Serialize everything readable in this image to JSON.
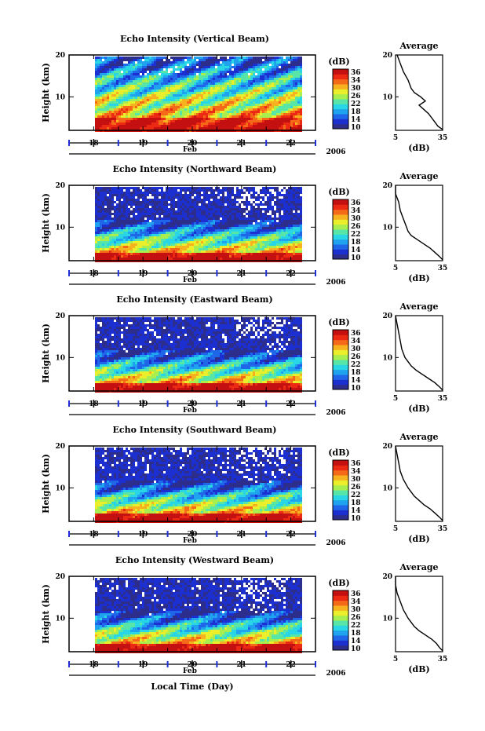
{
  "xlabel": "Local Time (Day)",
  "month_label": "Feb",
  "year_label": "2006",
  "colorbar": {
    "unit_label": "(dB)",
    "ticks": [
      "36",
      "34",
      "30",
      "26",
      "22",
      "18",
      "14",
      "10"
    ],
    "colors": [
      "#2d2d8c",
      "#1c2fd0",
      "#1f66e8",
      "#1fa3ee",
      "#29d6e6",
      "#57e6a8",
      "#a8ee4e",
      "#ebee2a",
      "#f7b21f",
      "#f56a18",
      "#ec2a14",
      "#c41010"
    ]
  },
  "chart_data": [
    {
      "type": "heatmap",
      "title": "Echo Intensity (Vertical Beam)",
      "ylabel": "Height (km)",
      "x_ticks": [
        "18",
        "19",
        "20",
        "21",
        "22"
      ],
      "y_ticks": [
        "20",
        "10"
      ],
      "xlim": [
        17.5,
        22.5
      ],
      "ylim": [
        2,
        20
      ],
      "clim_db": [
        10,
        36
      ],
      "profile": {
        "title": "Average",
        "xlabel": "(dB)",
        "x_ticks": [
          "5",
          "35"
        ],
        "y_ticks": [
          "20",
          "10"
        ],
        "xlim": [
          5,
          35
        ],
        "ylim": [
          2,
          20
        ],
        "height_km": [
          20,
          18,
          16,
          14,
          12,
          11,
          10,
          9,
          8,
          7,
          6,
          5,
          4,
          3,
          2.2
        ],
        "db": [
          6,
          8,
          10,
          13,
          15,
          17,
          21,
          24,
          20,
          23,
          26,
          28,
          30,
          32,
          35
        ]
      }
    },
    {
      "type": "heatmap",
      "title": "Echo Intensity (Northward Beam)",
      "ylabel": "Height (km)",
      "x_ticks": [
        "18",
        "19",
        "20",
        "21",
        "22"
      ],
      "y_ticks": [
        "20",
        "10"
      ],
      "xlim": [
        17.5,
        22.5
      ],
      "ylim": [
        2,
        20
      ],
      "clim_db": [
        10,
        36
      ],
      "profile": {
        "title": "Average",
        "xlabel": "(dB)",
        "x_ticks": [
          "5",
          "35"
        ],
        "y_ticks": [
          "20",
          "10"
        ],
        "xlim": [
          5,
          35
        ],
        "ylim": [
          2,
          20
        ],
        "height_km": [
          20,
          18,
          16,
          14,
          12,
          10,
          9,
          8,
          7,
          6,
          5,
          4,
          3,
          2.2
        ],
        "db": [
          5,
          5,
          7,
          8,
          10,
          12,
          13,
          15,
          19,
          23,
          27,
          30,
          33,
          35
        ]
      }
    },
    {
      "type": "heatmap",
      "title": "Echo Intensity (Eastward Beam)",
      "ylabel": "Height (km)",
      "x_ticks": [
        "18",
        "19",
        "20",
        "21",
        "22"
      ],
      "y_ticks": [
        "20",
        "10"
      ],
      "xlim": [
        17.5,
        22.5
      ],
      "ylim": [
        2,
        20
      ],
      "clim_db": [
        10,
        36
      ],
      "profile": {
        "title": "Average",
        "xlabel": "(dB)",
        "x_ticks": [
          "5",
          "35"
        ],
        "y_ticks": [
          "20",
          "10"
        ],
        "xlim": [
          5,
          35
        ],
        "ylim": [
          2,
          20
        ],
        "height_km": [
          20,
          18,
          16,
          14,
          12,
          10,
          9,
          8,
          7,
          6,
          5,
          4,
          3,
          2.2
        ],
        "db": [
          5,
          6,
          7,
          8,
          9,
          11,
          13,
          15,
          18,
          22,
          26,
          30,
          33,
          35
        ]
      }
    },
    {
      "type": "heatmap",
      "title": "Echo Intensity (Southward Beam)",
      "ylabel": "Height (km)",
      "x_ticks": [
        "18",
        "19",
        "20",
        "21",
        "22"
      ],
      "y_ticks": [
        "20",
        "10"
      ],
      "xlim": [
        17.5,
        22.5
      ],
      "ylim": [
        2,
        20
      ],
      "clim_db": [
        10,
        36
      ],
      "profile": {
        "title": "Average",
        "xlabel": "(dB)",
        "x_ticks": [
          "5",
          "35"
        ],
        "y_ticks": [
          "20",
          "10"
        ],
        "xlim": [
          5,
          35
        ],
        "ylim": [
          2,
          20
        ],
        "height_km": [
          20,
          18,
          16,
          14,
          12,
          10,
          9,
          8,
          7,
          6,
          5,
          4,
          3,
          2.2
        ],
        "db": [
          5,
          6,
          7,
          8,
          10,
          13,
          15,
          17,
          20,
          23,
          27,
          30,
          33,
          35
        ]
      }
    },
    {
      "type": "heatmap",
      "title": "Echo Intensity (Westward Beam)",
      "ylabel": "Height (km)",
      "x_ticks": [
        "18",
        "19",
        "20",
        "21",
        "22"
      ],
      "y_ticks": [
        "20",
        "10"
      ],
      "xlim": [
        17.5,
        22.5
      ],
      "ylim": [
        2,
        20
      ],
      "clim_db": [
        10,
        36
      ],
      "profile": {
        "title": "Average",
        "xlabel": "(dB)",
        "x_ticks": [
          "5",
          "35"
        ],
        "y_ticks": [
          "20",
          "10"
        ],
        "xlim": [
          5,
          35
        ],
        "ylim": [
          2,
          20
        ],
        "height_km": [
          20,
          18,
          16,
          14,
          12,
          10,
          9,
          8,
          7,
          6,
          5,
          4,
          3,
          2.2
        ],
        "db": [
          5,
          5,
          6,
          8,
          10,
          13,
          15,
          17,
          20,
          24,
          28,
          31,
          33,
          35
        ]
      }
    }
  ]
}
